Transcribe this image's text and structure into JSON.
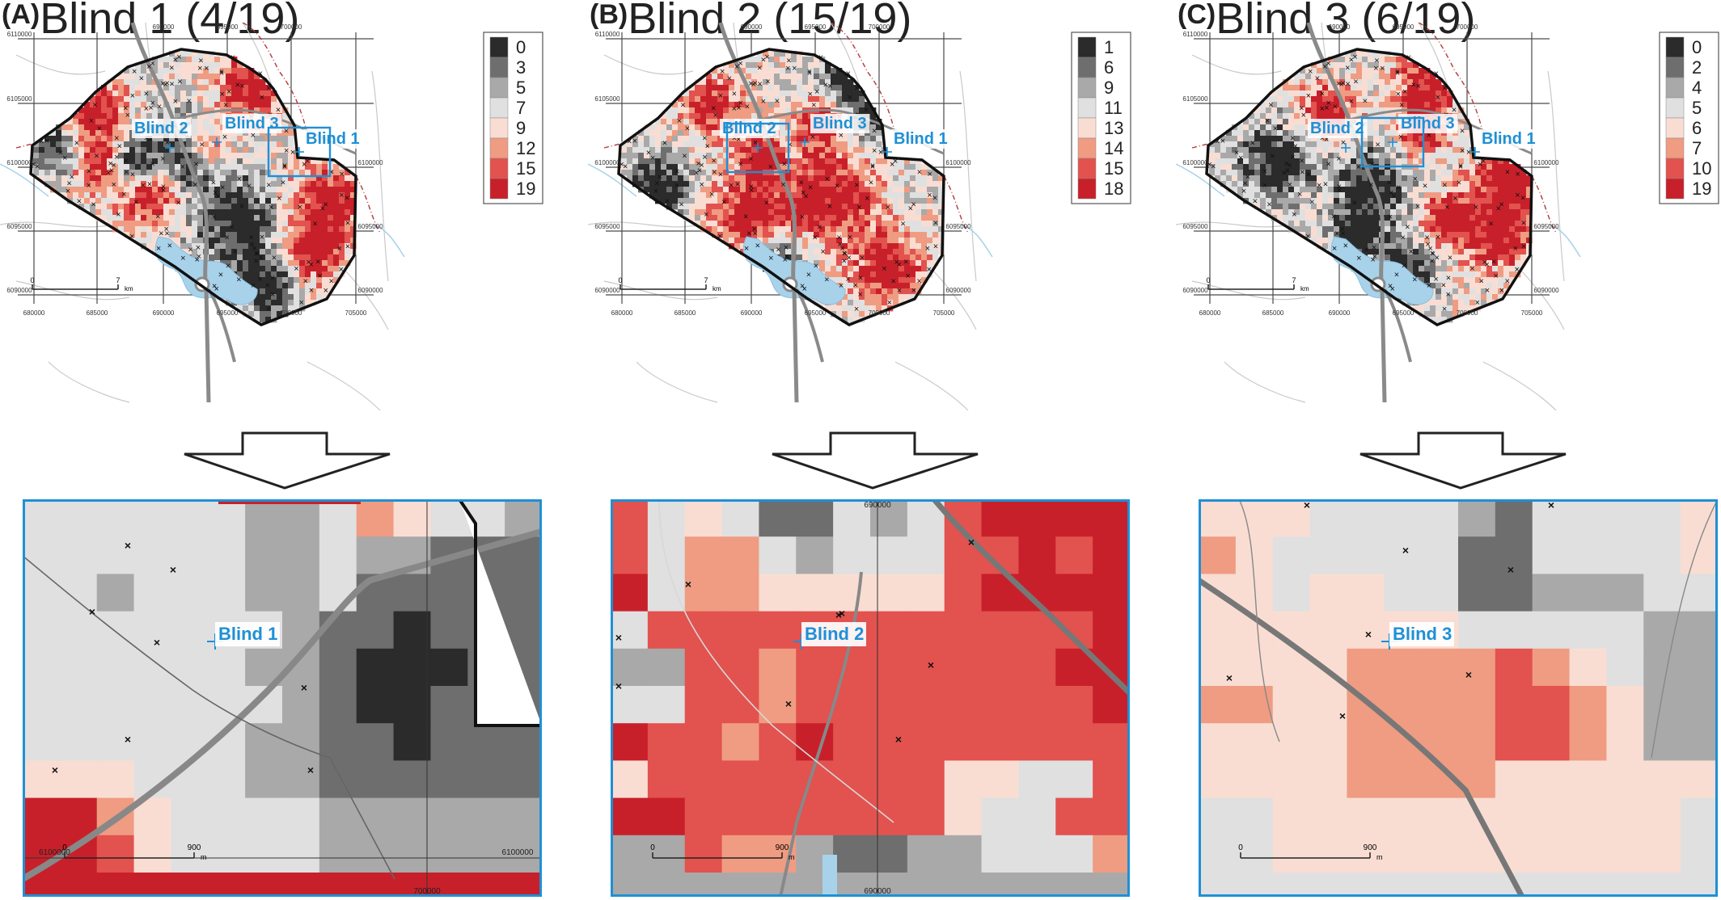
{
  "panels": [
    {
      "label": "(A)",
      "title": "Blind 1 (4/19)",
      "target_blind": "Blind 1",
      "legend": [
        "0",
        "3",
        "5",
        "7",
        "9",
        "12",
        "15",
        "19"
      ],
      "blind_labels": [
        "Blind 2",
        "Blind 3",
        "Blind 1"
      ],
      "zoom_label": "Blind 1",
      "zoom_scale": {
        "start": "0",
        "end": "900",
        "unit": "m"
      },
      "zoom_coords": [
        "6100000",
        "700000",
        "6100000"
      ]
    },
    {
      "label": "(B)",
      "title": "Blind 2 (15/19)",
      "target_blind": "Blind 2",
      "legend": [
        "1",
        "6",
        "9",
        "11",
        "13",
        "14",
        "15",
        "18"
      ],
      "blind_labels": [
        "Blind 2",
        "Blind 3",
        "Blind 1"
      ],
      "zoom_label": "Blind 2",
      "zoom_scale": {
        "start": "0",
        "end": "900",
        "unit": "m"
      },
      "zoom_coords": [
        "690000",
        "690000"
      ]
    },
    {
      "label": "(C)",
      "title": "Blind 3 (6/19)",
      "target_blind": "Blind 3",
      "legend": [
        "0",
        "2",
        "4",
        "5",
        "6",
        "7",
        "10",
        "19"
      ],
      "blind_labels": [
        "Blind 2",
        "Blind 3",
        "Blind 1"
      ],
      "zoom_label": "Blind 3",
      "zoom_scale": {
        "start": "0",
        "end": "900",
        "unit": "m"
      },
      "zoom_coords": []
    }
  ],
  "map_axes": {
    "x_ticks": [
      "680000",
      "685000",
      "690000",
      "695000",
      "700000",
      "705000"
    ],
    "y_ticks": [
      "6110000",
      "6105000",
      "6100000",
      "6095000",
      "6090000"
    ],
    "scale_bar": {
      "start": "0",
      "end": "7",
      "unit": "km"
    }
  },
  "colors": {
    "accent_blue": "#1e90d6",
    "boundary": "#111111",
    "road": "#8a8a8a",
    "water": "#a8d2ea",
    "scale": [
      "#2b2b2b",
      "#6e6e6e",
      "#a9a9a9",
      "#e0e0e0",
      "#f9ddd3",
      "#ef9c82",
      "#e2524e",
      "#c8202a"
    ]
  }
}
